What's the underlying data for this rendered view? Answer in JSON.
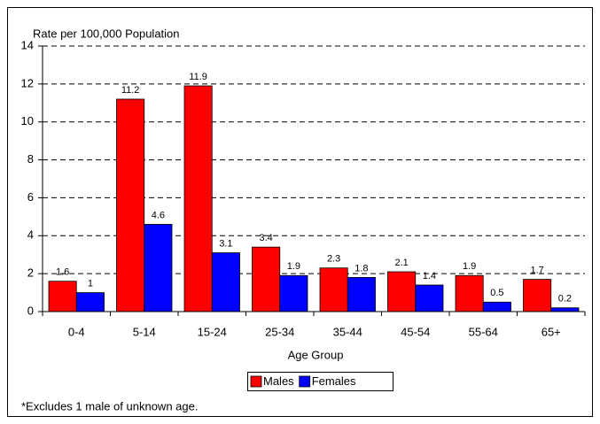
{
  "chart_data": {
    "type": "bar",
    "y_axis_label": "Rate per 100,000 Population",
    "x_axis_label": "Age Group",
    "note": "*Excludes 1 male of unknown age.",
    "categories": [
      "0-4",
      "5-14",
      "15-24",
      "25-34",
      "35-44",
      "45-54",
      "55-64",
      "65+"
    ],
    "series": [
      {
        "name": "Males",
        "color": "#ff0000",
        "values": [
          1.6,
          11.2,
          11.9,
          3.4,
          2.3,
          2.1,
          1.9,
          1.7
        ]
      },
      {
        "name": "Females",
        "color": "#0000ff",
        "values": [
          1,
          4.6,
          3.1,
          1.9,
          1.8,
          1.4,
          0.5,
          0.2
        ]
      }
    ],
    "ylim": [
      0,
      14
    ],
    "yticks": [
      0,
      2,
      4,
      6,
      8,
      10,
      12,
      14
    ],
    "grid": true,
    "legend": "bottom"
  }
}
